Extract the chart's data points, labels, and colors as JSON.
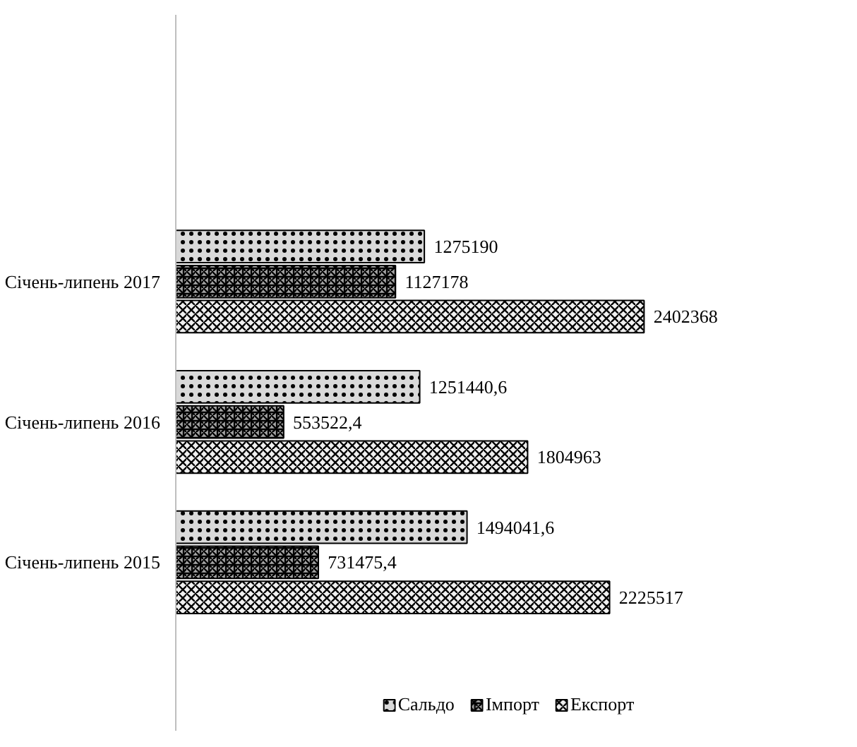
{
  "chart_data": {
    "type": "bar",
    "orientation": "horizontal",
    "categories": [
      "Січень-липень 2017",
      "Січень-липень 2016",
      "Січень-липень 2015"
    ],
    "series": [
      {
        "name": "Сальдо",
        "color": "#d9d9d9",
        "values": [
          1275190,
          1251440.6,
          1494041.6
        ],
        "value_labels": [
          "1275190",
          "1251440,6",
          "1494041,6"
        ]
      },
      {
        "name": "Імпорт",
        "color": "#a6a6a6",
        "values": [
          1127178,
          553522.4,
          731475.4
        ],
        "value_labels": [
          "1127178",
          "553522,4",
          "731475,4"
        ]
      },
      {
        "name": "Експорт",
        "color": "#f0f0f0",
        "values": [
          2402368,
          1804963,
          2225517
        ],
        "value_labels": [
          "2402368",
          "1804963",
          "2225517"
        ]
      }
    ],
    "legend": "bottom",
    "grid": false,
    "tick_labels": "y"
  }
}
